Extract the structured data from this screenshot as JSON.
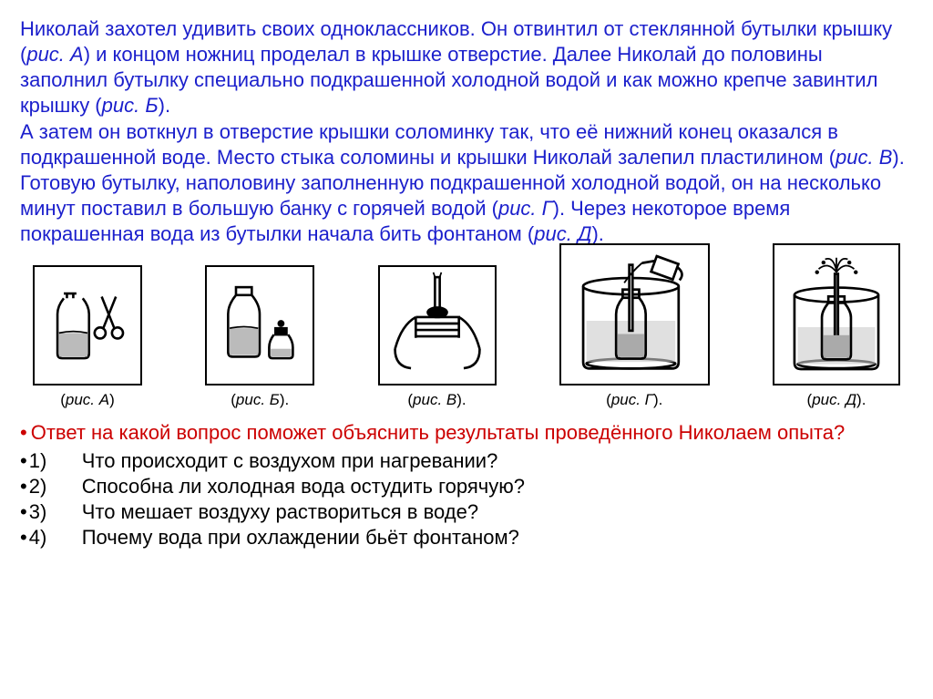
{
  "intro_html": "Николай захотел удивить своих одноклассников. Он отвинтил от стеклянной бутылки крышку (<i>рис. А</i>) и концом ножниц проделал в крышке отверстие. Далее Николай до половины заполнил бутылку специально подкрашенной холодной водой и как можно крепче завинтил крышку (<i>рис. Б</i>).<br>А затем он воткнул в отверстие крышки соломинку так, что её нижний конец оказался в подкрашенной воде. Место стыка соломины и крышки Николай залепил пластилином (<i>рис. В</i>). Готовую бутылку, наполовину заполненную подкрашенной холодной водой, он на несколько минут поставил в большую банку с горячей водой (<i>рис. Г</i>). Через некоторое время покрашенная вода из бутылки начала бить фонтаном (<i>рис. Д</i>).",
  "figures": [
    {
      "label": "(рис. А)",
      "w": 120,
      "h": 132
    },
    {
      "label": "(рис. Б).",
      "w": 120,
      "h": 132
    },
    {
      "label": "(рис. В).",
      "w": 130,
      "h": 132
    },
    {
      "label": "(рис. Г).",
      "w": 165,
      "h": 156
    },
    {
      "label": "(рис. Д).",
      "w": 140,
      "h": 156
    }
  ],
  "question": "Ответ на какой вопрос поможет объяснить результаты проведённого Николаем опыта?",
  "answers": [
    {
      "num": "1)",
      "text": "Что происходит с воздухом при нагревании?"
    },
    {
      "num": "2)",
      "text": "Способна ли холодная вода остудить горячую?"
    },
    {
      "num": "3)",
      "text": "Что мешает воздуху раствориться в воде?"
    },
    {
      "num": "4)",
      "text": "Почему вода при охлаждении бьёт фонтаном?"
    }
  ],
  "colors": {
    "intro": "#1b1fcc",
    "question": "#cc0000",
    "text": "#000000",
    "background": "#ffffff"
  }
}
